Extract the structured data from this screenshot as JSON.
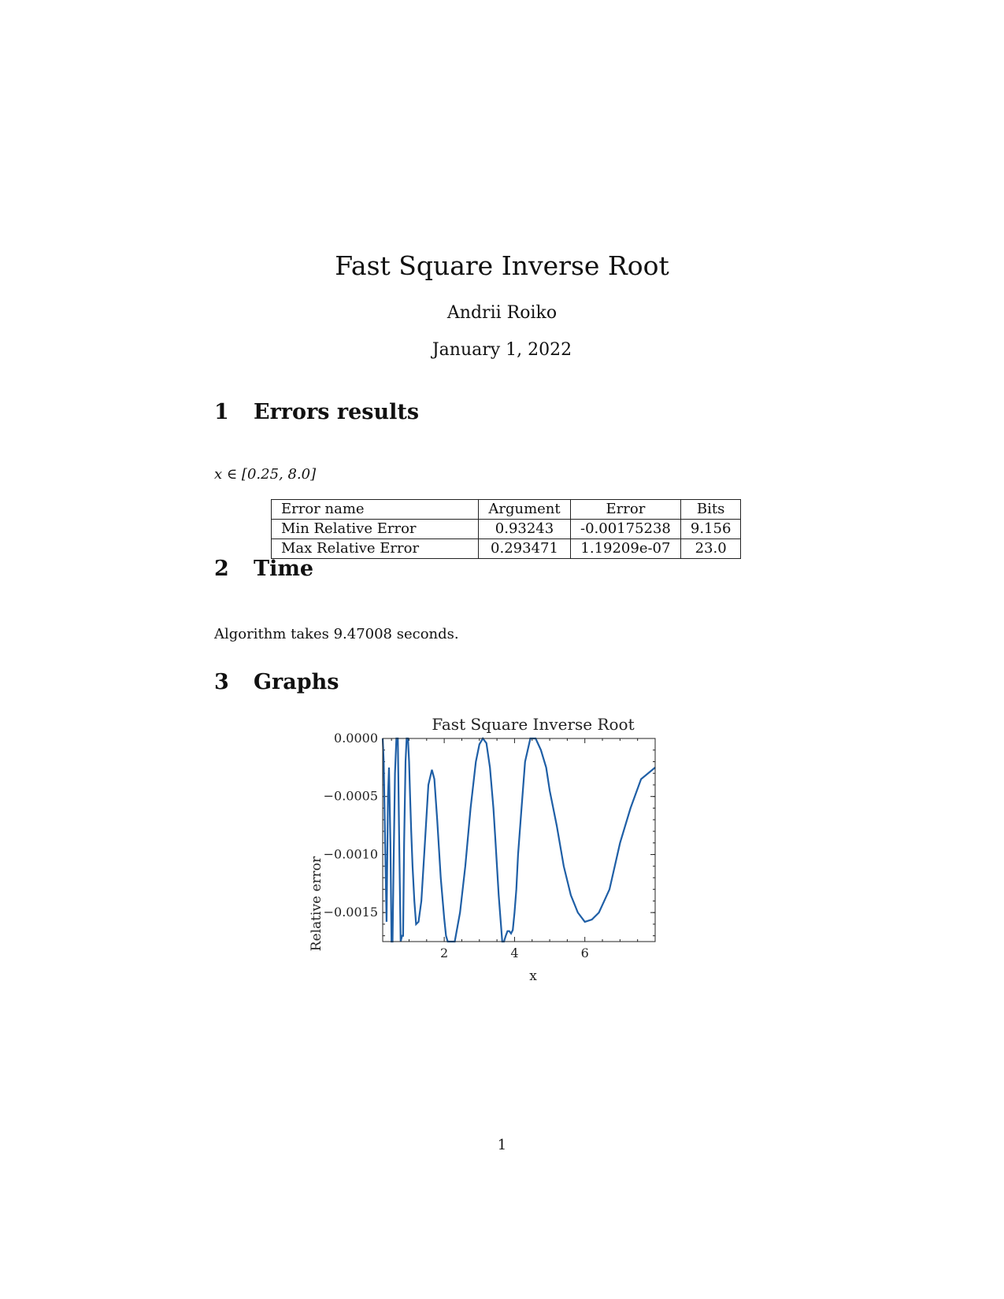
{
  "document": {
    "title": "Fast Square Inverse Root",
    "author": "Andrii Roiko",
    "date": "January 1, 2022",
    "page_number": "1"
  },
  "sections": [
    {
      "number": "1",
      "title": "Errors results"
    },
    {
      "number": "2",
      "title": "Time"
    },
    {
      "number": "3",
      "title": "Graphs"
    }
  ],
  "errors": {
    "domain": "x ∈ [0.25, 8.0]",
    "table": {
      "headers": [
        "Error name",
        "Argument",
        "Error",
        "Bits"
      ],
      "rows": [
        [
          "Min Relative Error",
          "0.93243",
          "-0.00175238",
          "9.156"
        ],
        [
          "Max Relative Error",
          "0.293471",
          "1.19209e-07",
          "23.0"
        ]
      ]
    }
  },
  "time": {
    "text": "Algorithm takes 9.47008 seconds."
  },
  "chart_data": {
    "type": "line",
    "title": "Fast Square Inverse Root",
    "xlabel": "x",
    "ylabel": "Relative error",
    "xlim": [
      0.25,
      8.0
    ],
    "ylim": [
      -0.00175,
      0.0
    ],
    "x_ticks": [
      2,
      4,
      6
    ],
    "x_tick_labels": [
      "2",
      "4",
      "6"
    ],
    "y_ticks": [
      0.0,
      -0.0005,
      -0.001,
      -0.0015
    ],
    "y_tick_labels": [
      "0.0000",
      "−0.0005",
      "−0.0010",
      "−0.0015"
    ],
    "grid": false,
    "line_color": "#1f5fa6",
    "series": [
      {
        "x": [
          0.25,
          0.28,
          0.32,
          0.36,
          0.4,
          0.43,
          0.47,
          0.5,
          0.53,
          0.56,
          0.6,
          0.64,
          0.68,
          0.72,
          0.76,
          0.8,
          0.83,
          0.86,
          0.9,
          0.93,
          0.97,
          1.0,
          1.03,
          1.06,
          1.1,
          1.15,
          1.2,
          1.27,
          1.35,
          1.45,
          1.55,
          1.65,
          1.72,
          1.8,
          1.9,
          2.0,
          2.05,
          2.1,
          2.2,
          2.3,
          2.45,
          2.6,
          2.75,
          2.9,
          3.0,
          3.1,
          3.2,
          3.3,
          3.4,
          3.45,
          3.55,
          3.65,
          3.7,
          3.75,
          3.8,
          3.85,
          3.9,
          3.95,
          4.0,
          4.05,
          4.1,
          4.2,
          4.3,
          4.45,
          4.6,
          4.75,
          4.9,
          5.0,
          5.2,
          5.4,
          5.6,
          5.8,
          6.0,
          6.2,
          6.4,
          6.55,
          6.7,
          6.85,
          7.0,
          7.3,
          7.6,
          8.0
        ],
        "y": [
          0.0,
          -0.0002,
          -0.0009,
          -0.00158,
          -0.0005,
          -0.00025,
          -0.0009,
          -0.00175,
          -0.00175,
          -0.0011,
          -0.0003,
          0.0,
          0.0,
          -0.0009,
          -0.00175,
          -0.0017,
          -0.0017,
          -0.0009,
          -0.0002,
          0.0,
          0.0,
          -0.0002,
          -0.0005,
          -0.0008,
          -0.0011,
          -0.0014,
          -0.0016,
          -0.00158,
          -0.0014,
          -0.0009,
          -0.0004,
          -0.00027,
          -0.00035,
          -0.0007,
          -0.0012,
          -0.00155,
          -0.0017,
          -0.00175,
          -0.00175,
          -0.00175,
          -0.0015,
          -0.0011,
          -0.0006,
          -0.0002,
          -5e-05,
          0.0,
          -4e-05,
          -0.00025,
          -0.0006,
          -0.00085,
          -0.00135,
          -0.00175,
          -0.00175,
          -0.0017,
          -0.00166,
          -0.00166,
          -0.00168,
          -0.00165,
          -0.0015,
          -0.0013,
          -0.001,
          -0.0006,
          -0.0002,
          0.0,
          0.0,
          -0.0001,
          -0.00025,
          -0.00045,
          -0.00075,
          -0.0011,
          -0.00135,
          -0.0015,
          -0.00158,
          -0.00156,
          -0.0015,
          -0.0014,
          -0.0013,
          -0.0011,
          -0.0009,
          -0.0006,
          -0.00035,
          -0.00025
        ]
      }
    ]
  }
}
